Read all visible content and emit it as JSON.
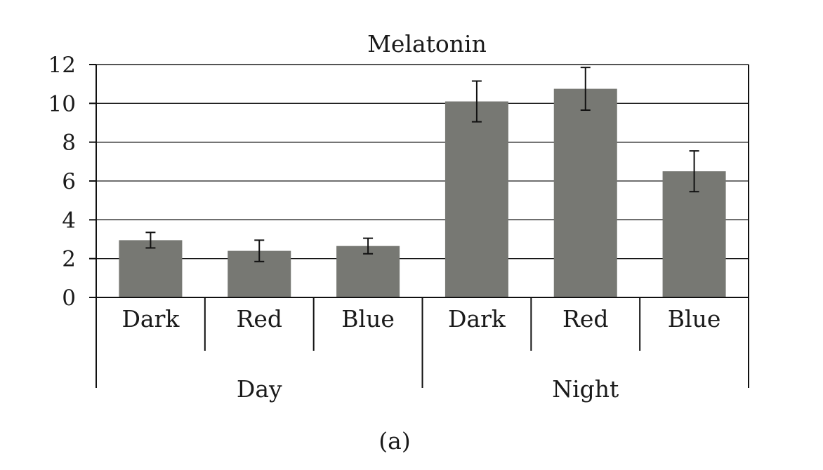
{
  "chart_data": {
    "type": "bar",
    "title": "Melatonin",
    "caption": "(a)",
    "groups": [
      {
        "label": "Day",
        "categories": [
          "Dark",
          "Red",
          "Blue"
        ]
      },
      {
        "label": "Night",
        "categories": [
          "Dark",
          "Red",
          "Blue"
        ]
      }
    ],
    "categories": [
      "Dark",
      "Red",
      "Blue",
      "Dark",
      "Red",
      "Blue"
    ],
    "values": [
      2.95,
      2.4,
      2.65,
      10.1,
      10.75,
      6.5
    ],
    "error": [
      0.4,
      0.55,
      0.4,
      1.05,
      1.1,
      1.05
    ],
    "ylim": [
      0,
      12
    ],
    "yticks": [
      0,
      2,
      4,
      6,
      8,
      10,
      12
    ],
    "grid": true,
    "bar_color": "#777873",
    "xlabel": "",
    "ylabel": ""
  }
}
